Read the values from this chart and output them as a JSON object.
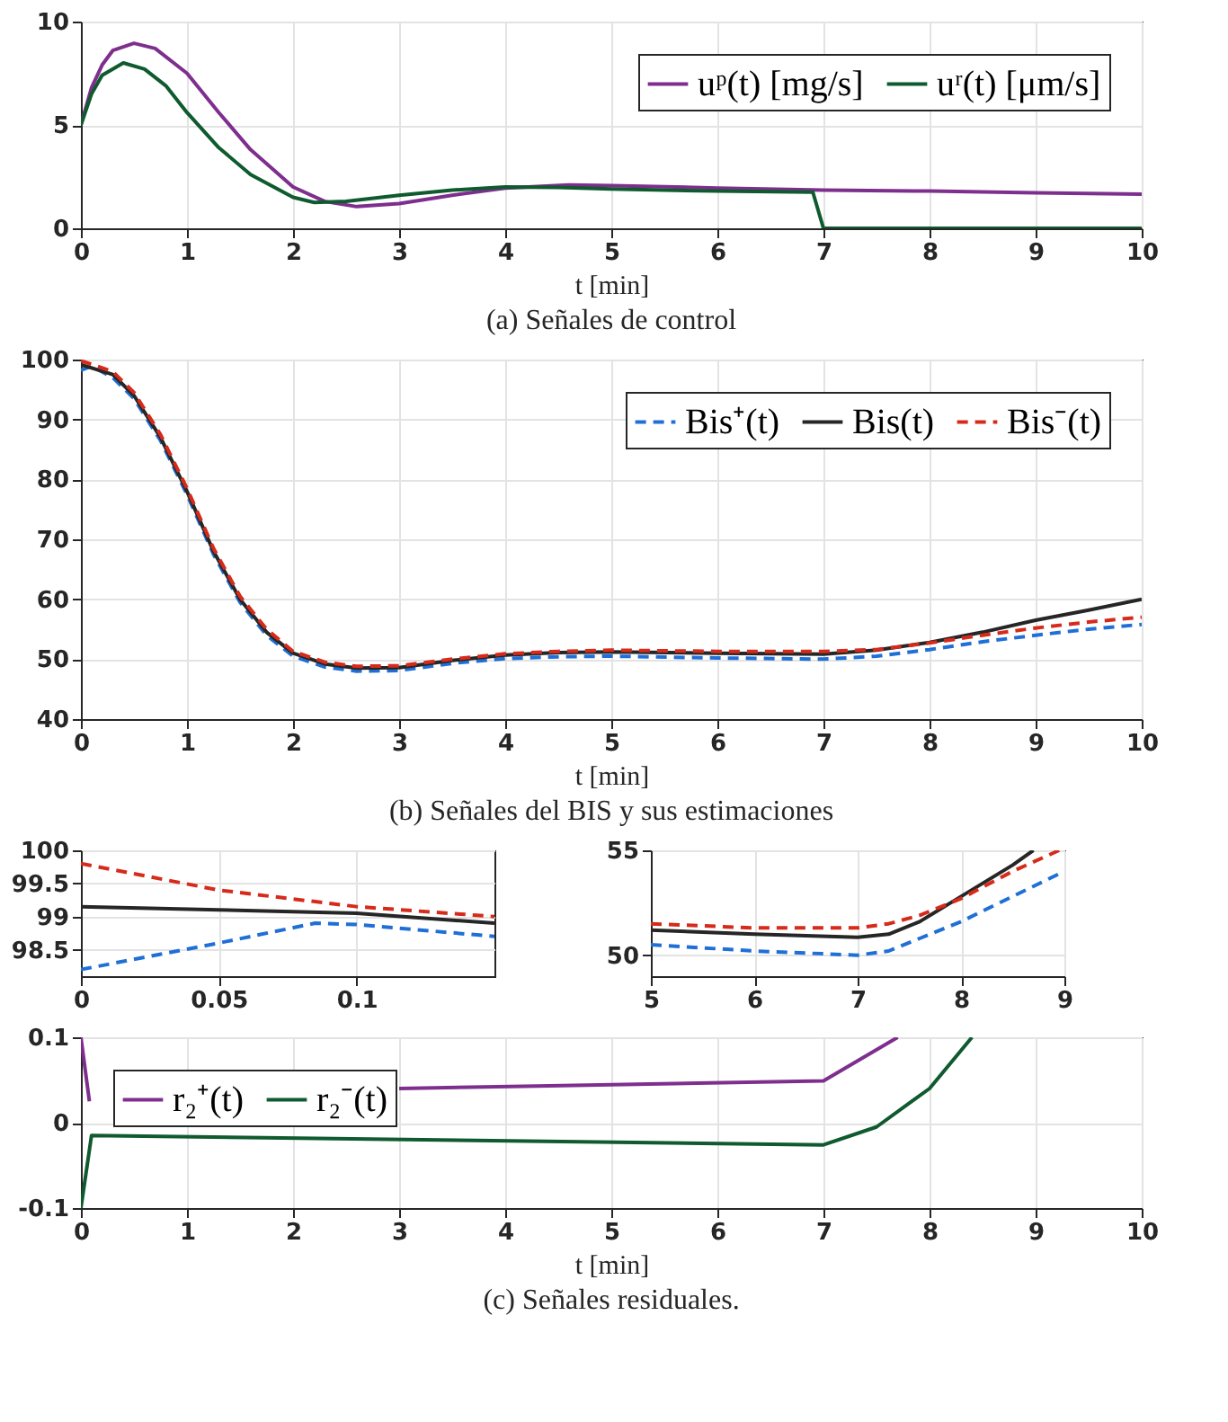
{
  "chart_data": [
    {
      "type": "line",
      "title": "(a) Señales de control",
      "xlabel": "t [min]",
      "xlim": [
        0,
        10
      ],
      "xticks": [
        0,
        1,
        2,
        3,
        4,
        5,
        6,
        7,
        8,
        9,
        10
      ],
      "ylim": [
        0,
        10
      ],
      "yticks": [
        0,
        5,
        10
      ],
      "grid": true,
      "legend": "top right",
      "line_style": "solid",
      "series": [
        {
          "name": "uᵖ(t) [mg/s]",
          "color": "#7e2f8e",
          "x": [
            0,
            0.1,
            0.2,
            0.3,
            0.5,
            0.7,
            1.0,
            1.3,
            1.6,
            2.0,
            2.3,
            2.6,
            3.0,
            3.5,
            4.0,
            4.6,
            5.0,
            6.0,
            7.0,
            8.0,
            9.0,
            10
          ],
          "values": [
            5,
            6.8,
            7.9,
            8.6,
            8.95,
            8.7,
            7.5,
            5.6,
            3.8,
            2.0,
            1.3,
            1.05,
            1.2,
            1.6,
            1.95,
            2.1,
            2.07,
            1.95,
            1.85,
            1.8,
            1.72,
            1.65
          ]
        },
        {
          "name": "uʳ(t) [μm/s]",
          "color": "#0f5a2e",
          "x": [
            0,
            0.1,
            0.2,
            0.4,
            0.6,
            0.8,
            1.0,
            1.3,
            1.6,
            2.0,
            2.2,
            2.5,
            3.0,
            3.5,
            4.0,
            4.5,
            5.0,
            6.0,
            6.9,
            7.0,
            10
          ],
          "values": [
            5,
            6.5,
            7.4,
            8.0,
            7.7,
            6.9,
            5.6,
            3.9,
            2.6,
            1.5,
            1.25,
            1.3,
            1.6,
            1.85,
            2.0,
            1.98,
            1.9,
            1.8,
            1.75,
            0,
            0
          ]
        }
      ]
    },
    {
      "type": "line",
      "title": "(b) Señales del BIS y sus estimaciones",
      "xlabel": "t [min]",
      "xlim": [
        0,
        10
      ],
      "xticks": [
        0,
        1,
        2,
        3,
        4,
        5,
        6,
        7,
        8,
        9,
        10
      ],
      "ylim": [
        40,
        100
      ],
      "yticks": [
        40,
        50,
        60,
        70,
        80,
        90,
        100
      ],
      "grid": true,
      "legend": "top right",
      "series": [
        {
          "name": "Bis⁺(t)",
          "color": "#1f6fd6",
          "line_style": "dashed",
          "x": [
            0,
            0.1,
            0.3,
            0.5,
            0.75,
            1.0,
            1.25,
            1.5,
            1.75,
            2.0,
            2.3,
            2.6,
            3.0,
            3.5,
            4.0,
            4.5,
            5.0,
            6.0,
            7.0,
            7.5,
            8.0,
            8.5,
            9.0,
            9.5,
            10
          ],
          "values": [
            98.2,
            98.9,
            97,
            93.5,
            86.5,
            77.5,
            67.5,
            59.5,
            54,
            50.5,
            48.7,
            48,
            48.1,
            49.3,
            50.1,
            50.4,
            50.5,
            50.2,
            50.0,
            50.5,
            51.6,
            52.9,
            54.0,
            55,
            55.8
          ]
        },
        {
          "name": "Bis(t)",
          "color": "#262626",
          "line_style": "solid",
          "x": [
            0,
            0.3,
            0.5,
            0.75,
            1.0,
            1.25,
            1.5,
            1.75,
            2.0,
            2.3,
            2.6,
            3.0,
            3.5,
            4.0,
            4.5,
            5.0,
            6.0,
            7.0,
            7.5,
            8.0,
            8.5,
            9.0,
            9.5,
            10
          ],
          "values": [
            99.15,
            97.5,
            94,
            87,
            78,
            68,
            60,
            54.5,
            51,
            49.2,
            48.5,
            48.6,
            49.8,
            50.7,
            51.1,
            51.2,
            51.0,
            50.85,
            51.5,
            52.8,
            54.5,
            56.5,
            58.2,
            60
          ]
        },
        {
          "name": "Bis⁻(t)",
          "color": "#d62a1a",
          "line_style": "dashed",
          "x": [
            0,
            0.3,
            0.5,
            0.75,
            1.0,
            1.25,
            1.5,
            1.75,
            2.0,
            2.3,
            2.6,
            3.0,
            3.5,
            4.0,
            4.5,
            5.0,
            6.0,
            7.0,
            7.5,
            8.0,
            8.5,
            9.0,
            9.5,
            10
          ],
          "values": [
            99.8,
            98,
            94.5,
            87.5,
            78.5,
            68.5,
            60.5,
            55,
            51.3,
            49.5,
            48.8,
            48.9,
            50.0,
            50.9,
            51.3,
            51.5,
            51.3,
            51.3,
            51.6,
            52.7,
            54.0,
            55.2,
            56.2,
            57
          ]
        }
      ]
    },
    {
      "type": "line",
      "xlim": [
        0,
        0.15
      ],
      "xticks": [
        0,
        0.05,
        0.1
      ],
      "ylim": [
        98.1,
        100
      ],
      "yticks": [
        98.5,
        99,
        99.5,
        100
      ],
      "grid": true,
      "series": [
        {
          "color": "#1f6fd6",
          "line_style": "dashed",
          "x": [
            0,
            0.05,
            0.085,
            0.1,
            0.15
          ],
          "values": [
            98.2,
            98.6,
            98.9,
            98.88,
            98.7
          ]
        },
        {
          "color": "#262626",
          "line_style": "solid",
          "x": [
            0,
            0.05,
            0.1,
            0.15
          ],
          "values": [
            99.15,
            99.1,
            99.05,
            98.9
          ]
        },
        {
          "color": "#d62a1a",
          "line_style": "dashed",
          "x": [
            0,
            0.05,
            0.1,
            0.15
          ],
          "values": [
            99.8,
            99.4,
            99.15,
            99.0
          ]
        }
      ]
    },
    {
      "type": "line",
      "xlim": [
        5,
        9
      ],
      "xticks": [
        5,
        6,
        7,
        8,
        9
      ],
      "ylim": [
        49,
        55
      ],
      "yticks": [
        50,
        55
      ],
      "grid": true,
      "series": [
        {
          "color": "#1f6fd6",
          "line_style": "dashed",
          "x": [
            5,
            6,
            7,
            7.3,
            7.6,
            8,
            8.5,
            9
          ],
          "values": [
            50.5,
            50.2,
            50.0,
            50.2,
            50.8,
            51.6,
            52.8,
            54.0
          ]
        },
        {
          "color": "#262626",
          "line_style": "solid",
          "x": [
            5,
            6,
            7,
            7.3,
            7.6,
            8,
            8.5,
            8.7
          ],
          "values": [
            51.2,
            51.0,
            50.85,
            51.0,
            51.6,
            52.8,
            54.3,
            55
          ]
        },
        {
          "color": "#d62a1a",
          "line_style": "dashed",
          "x": [
            5,
            6,
            7,
            7.3,
            7.6,
            8,
            8.5,
            8.95
          ],
          "values": [
            51.5,
            51.3,
            51.3,
            51.5,
            51.9,
            52.7,
            54.0,
            55
          ]
        }
      ]
    },
    {
      "type": "line",
      "title": "(c) Señales residuales.",
      "xlabel": "t [min]",
      "xlim": [
        0,
        10
      ],
      "xticks": [
        0,
        1,
        2,
        3,
        4,
        5,
        6,
        7,
        8,
        9,
        10
      ],
      "ylim": [
        -0.1,
        0.1
      ],
      "yticks": [
        -0.1,
        0,
        0.1
      ],
      "grid": true,
      "legend": "top left",
      "line_style": "solid",
      "series": [
        {
          "name": "r₂⁺(t)",
          "color": "#7e2f8e",
          "x": [
            0,
            0.08,
            1,
            3.0,
            4.3,
            7.0,
            7.7
          ],
          "values": [
            0.1,
            0.025,
            null,
            0.04,
            0.043,
            0.049,
            0.1
          ]
        },
        {
          "name": "r₂⁻(t)",
          "color": "#0f5a2e",
          "x": [
            0,
            0.1,
            7.0,
            7.5,
            8.0,
            8.4
          ],
          "values": [
            -0.1,
            -0.015,
            -0.026,
            -0.005,
            0.04,
            0.1
          ]
        }
      ]
    }
  ]
}
